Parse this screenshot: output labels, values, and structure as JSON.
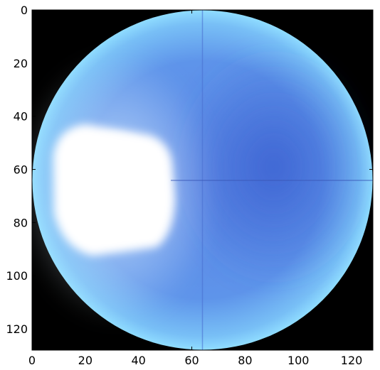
{
  "image": {
    "subject": "circular fisheye sky image",
    "colors": {
      "background": "#000000",
      "sky_edge": "#7fd0ff",
      "sky_mid": "#5f96ea",
      "sky_dark": "#3f68d6",
      "glare": "#ffffff"
    }
  },
  "axes": {
    "x_ticks": [
      "0",
      "20",
      "40",
      "60",
      "80",
      "100",
      "120"
    ],
    "y_ticks": [
      "0",
      "20",
      "40",
      "60",
      "80",
      "100",
      "120"
    ],
    "xlim": [
      0,
      128
    ],
    "ylim": [
      128,
      0
    ]
  }
}
